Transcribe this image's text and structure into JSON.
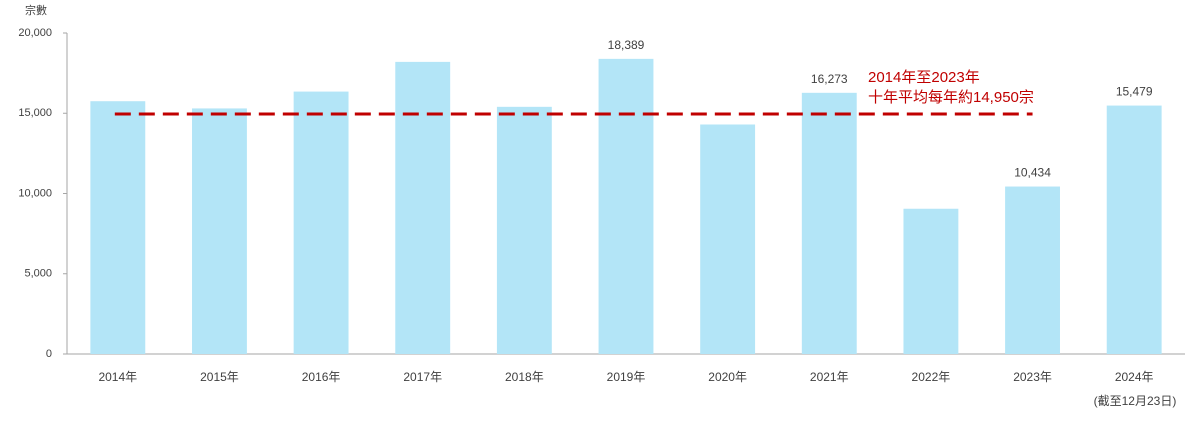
{
  "chart_data": {
    "type": "bar",
    "y_axis_label": "宗數",
    "categories": [
      "2014年",
      "2015年",
      "2016年",
      "2017年",
      "2018年",
      "2019年",
      "2020年",
      "2021年",
      "2022年",
      "2023年",
      "2024年"
    ],
    "values": [
      15750,
      15300,
      16350,
      18200,
      15400,
      18389,
      14300,
      16273,
      9050,
      10434,
      15479
    ],
    "value_labels": [
      null,
      null,
      null,
      null,
      null,
      "18,389",
      null,
      "16,273",
      null,
      "10,434",
      "15,479"
    ],
    "color": "#b3e5f7",
    "ylim": [
      0,
      20000
    ],
    "yticks": [
      0,
      {
        "value": 5000,
        "label": "5,000"
      },
      {
        "value": 10000,
        "label": "10,000"
      },
      {
        "value": 15000,
        "label": "15,000"
      },
      {
        "value": 20000,
        "label": "20,000"
      }
    ],
    "average": {
      "value": 14950,
      "color": "#c00000",
      "label": [
        "2014年至2023年",
        "十年平均每年約14,950宗"
      ]
    },
    "footnote": "(截至12月23日)"
  }
}
